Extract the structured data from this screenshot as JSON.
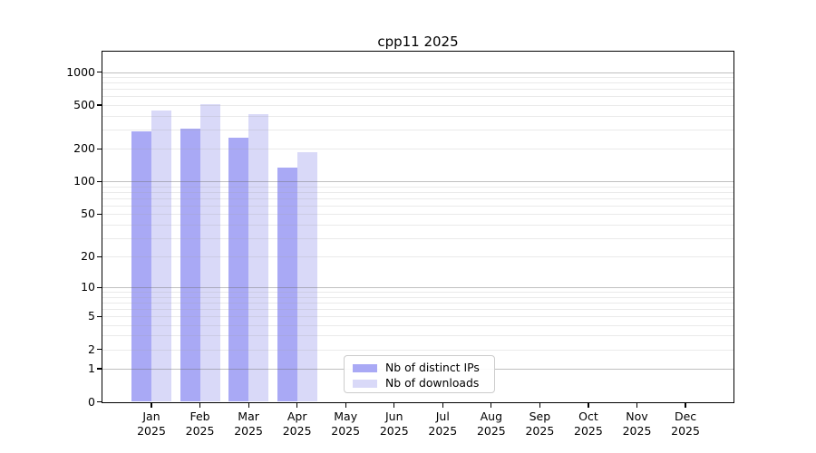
{
  "chart_data": {
    "type": "bar",
    "title": "cpp11 2025",
    "year_label": "2025",
    "categories": [
      "Jan",
      "Feb",
      "Mar",
      "Apr",
      "May",
      "Jun",
      "Jul",
      "Aug",
      "Sep",
      "Oct",
      "Nov",
      "Dec"
    ],
    "series": [
      {
        "name": "Nb of distinct IPs",
        "color": "#a9a9f5",
        "values": [
          290,
          305,
          250,
          135,
          null,
          null,
          null,
          null,
          null,
          null,
          null,
          null
        ]
      },
      {
        "name": "Nb of downloads",
        "color": "#d9d9f8",
        "values": [
          445,
          505,
          410,
          185,
          null,
          null,
          null,
          null,
          null,
          null,
          null,
          null
        ]
      }
    ],
    "yscale": "log1p",
    "yticks": [
      0,
      1,
      2,
      5,
      10,
      20,
      50,
      100,
      200,
      500,
      1000
    ],
    "ylim": [
      0,
      1500
    ],
    "grid": {
      "major_lines": [
        1,
        10,
        100,
        1000
      ],
      "minor_multiples": [
        2,
        3,
        4,
        5,
        6,
        7,
        8,
        9
      ]
    },
    "legend": {
      "position": "lower center"
    }
  }
}
